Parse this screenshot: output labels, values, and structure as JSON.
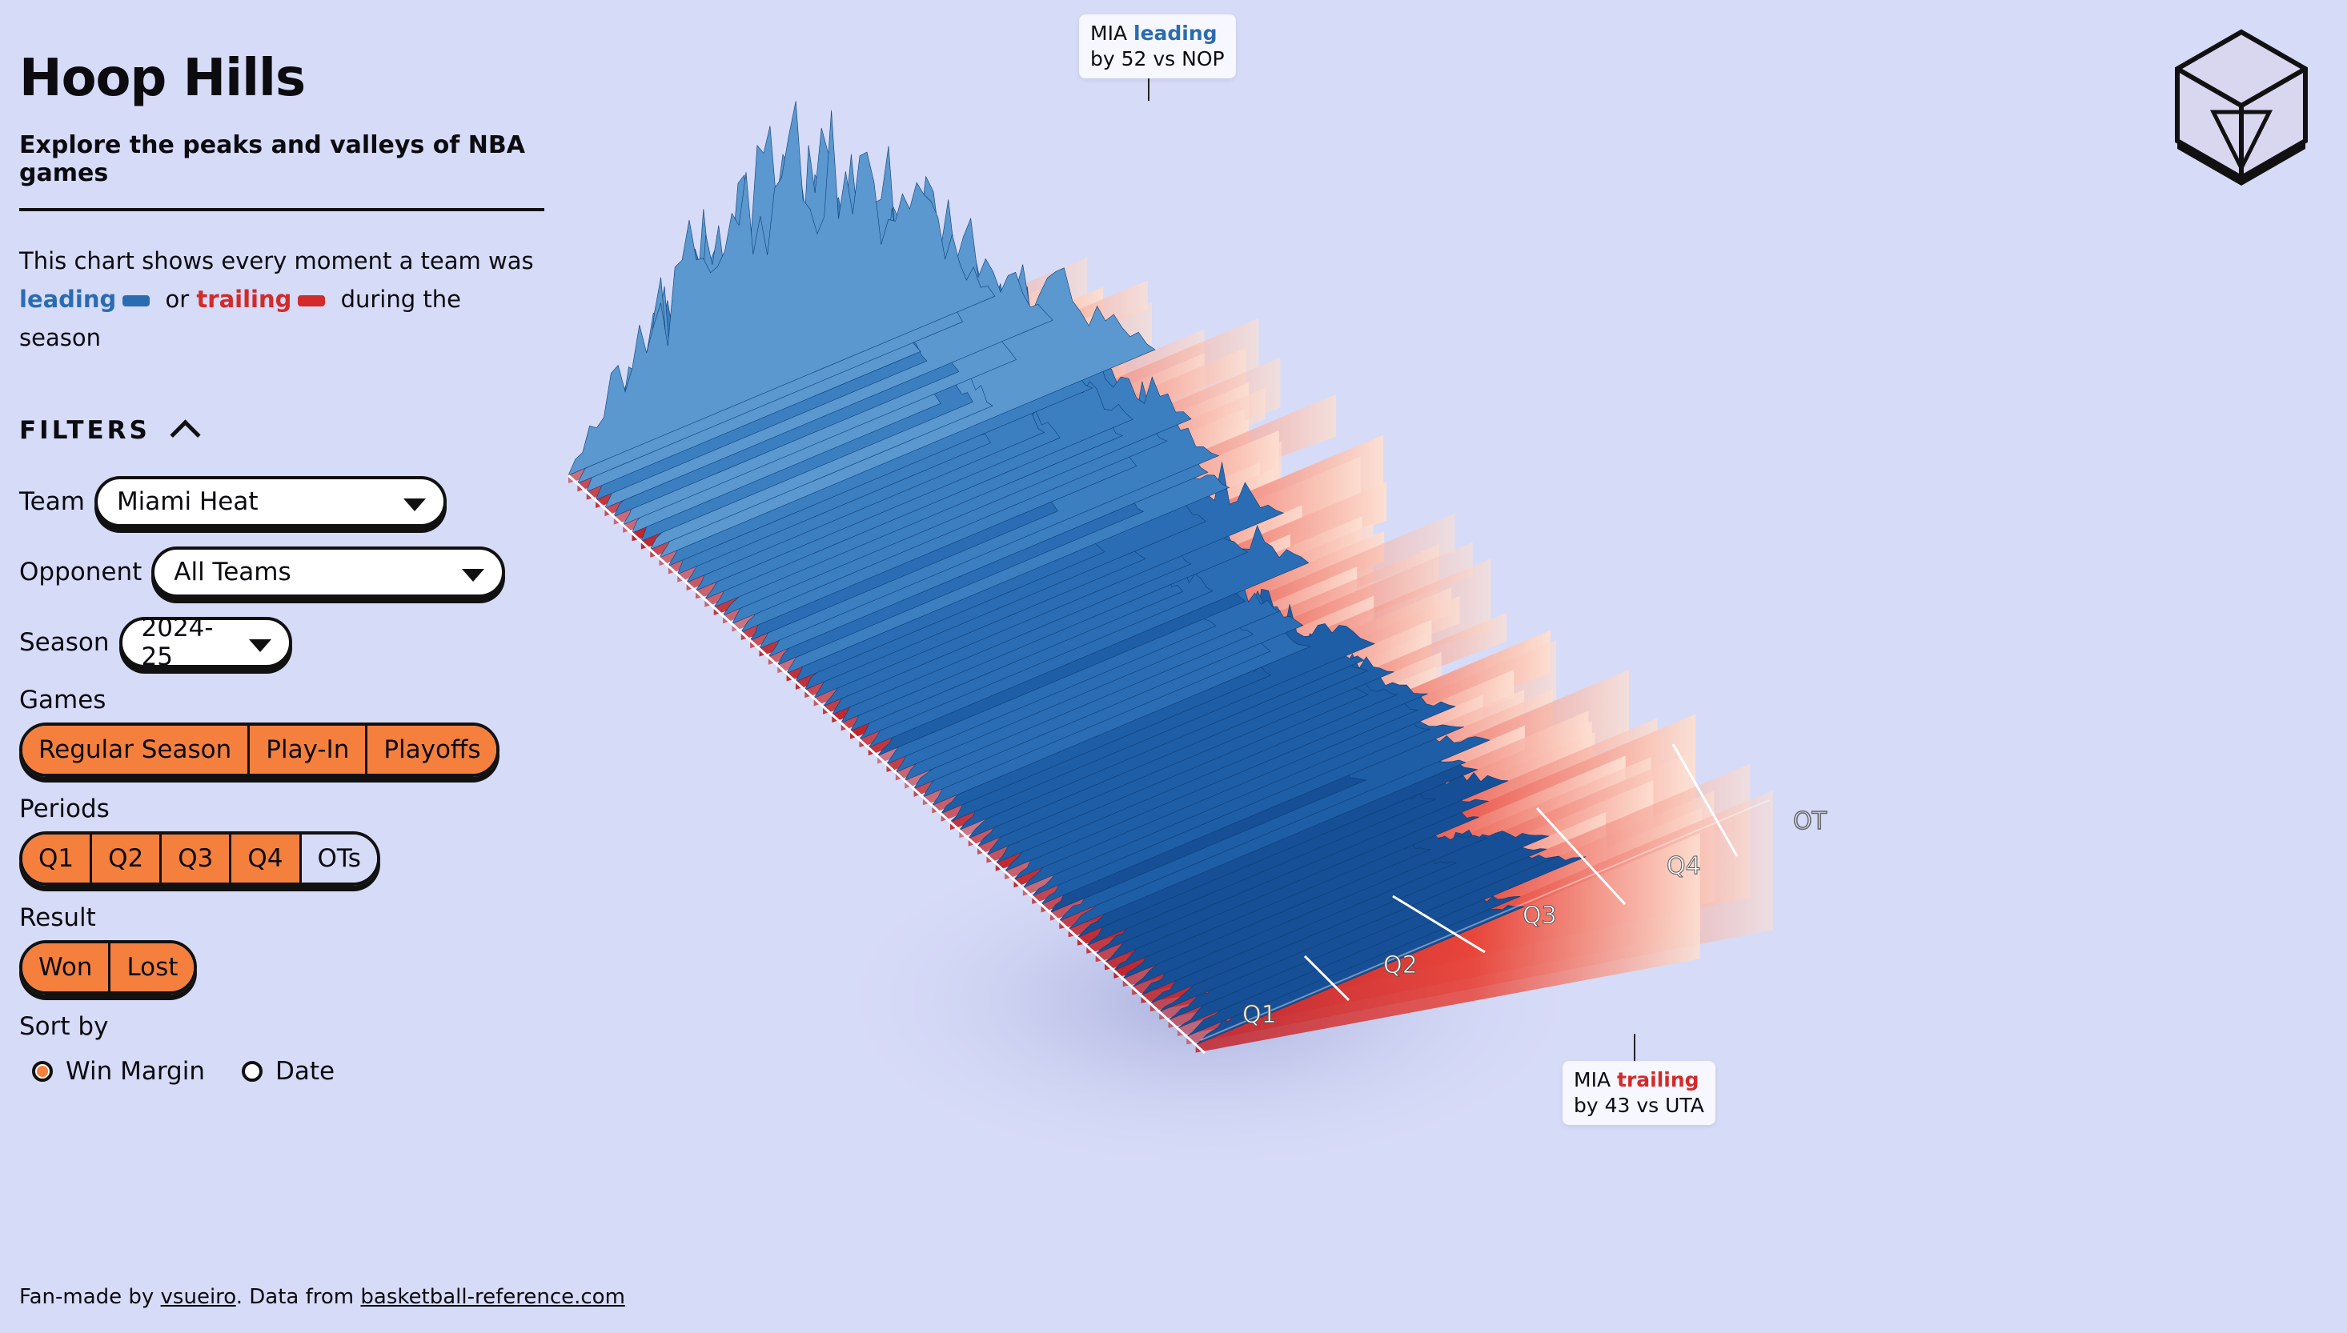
{
  "header": {
    "title": "Hoop Hills",
    "subtitle": "Explore the peaks and valleys of NBA games"
  },
  "description": {
    "line1": "This chart shows every moment a team was",
    "leading": "leading",
    "or": "or",
    "trailing": "trailing",
    "suffix": "during the season"
  },
  "filters": {
    "heading": "FILTERS",
    "team": {
      "label": "Team",
      "value": "Miami Heat"
    },
    "opponent": {
      "label": "Opponent",
      "value": "All Teams"
    },
    "season": {
      "label": "Season",
      "value": "2024-25"
    },
    "games": {
      "label": "Games",
      "options": [
        "Regular Season",
        "Play-In",
        "Playoffs"
      ]
    },
    "periods": {
      "label": "Periods",
      "options": [
        "Q1",
        "Q2",
        "Q3",
        "Q4",
        "OTs"
      ],
      "selected": [
        true,
        true,
        true,
        true,
        false
      ]
    },
    "result": {
      "label": "Result",
      "options": [
        "Won",
        "Lost"
      ]
    },
    "sort": {
      "label": "Sort by",
      "options": [
        "Win Margin",
        "Date"
      ],
      "selected": "Win Margin"
    }
  },
  "footer": {
    "prefix": "Fan-made by",
    "author": "vsueiro",
    "middle": ". Data from",
    "source": "basketball-reference.com"
  },
  "colors": {
    "leading": "#2b6cb0",
    "trailing": "#d32a2a",
    "accent": "#f5803e",
    "background": "#d6dbf7"
  },
  "chart": {
    "period_labels": [
      "Q1",
      "Q2",
      "Q3",
      "Q4",
      "OT"
    ],
    "peak_tooltip": {
      "team": "MIA",
      "word": "leading",
      "detail": "by 52 vs NOP"
    },
    "valley_tooltip": {
      "team": "MIA",
      "word": "trailing",
      "detail": "by 43 vs UTA"
    }
  },
  "chart_data": {
    "type": "area",
    "max_lead": 52,
    "max_lead_opponent": "NOP",
    "max_trail": 43,
    "max_trail_opponent": "UTA"
  },
  "toolbar": {
    "icon": "cube-view-icon"
  }
}
